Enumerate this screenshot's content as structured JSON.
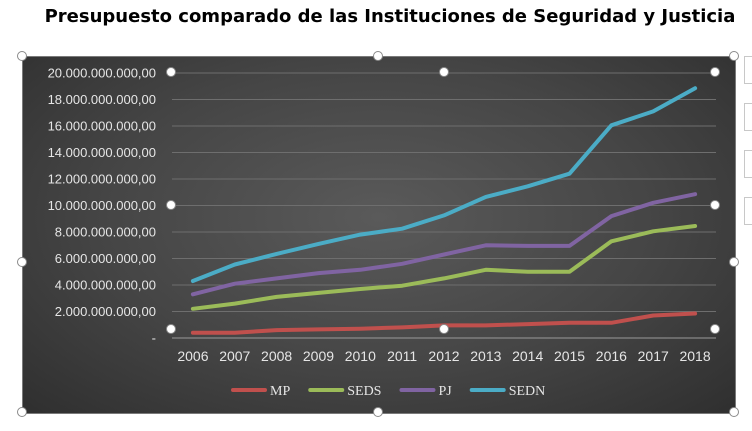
{
  "chart_data": {
    "type": "line",
    "title": "Presupuesto comparado de las Instituciones de Seguridad y Justicia",
    "xlabel": "",
    "ylabel": "",
    "categories": [
      "2006",
      "2007",
      "2008",
      "2009",
      "2010",
      "2011",
      "2012",
      "2013",
      "2014",
      "2015",
      "2016",
      "2017",
      "2018"
    ],
    "ylim": [
      0,
      20000000000
    ],
    "yticks": [
      {
        "value": 0,
        "label": "-"
      },
      {
        "value": 2000000000,
        "label": "2.000.000.000,00"
      },
      {
        "value": 4000000000,
        "label": "4.000.000.000,00"
      },
      {
        "value": 6000000000,
        "label": "6.000.000.000,00"
      },
      {
        "value": 8000000000,
        "label": "8.000.000.000,00"
      },
      {
        "value": 10000000000,
        "label": "10.000.000.000,00"
      },
      {
        "value": 12000000000,
        "label": "12.000.000.000,00"
      },
      {
        "value": 14000000000,
        "label": "14.000.000.000,00"
      },
      {
        "value": 16000000000,
        "label": "16.000.000.000,00"
      },
      {
        "value": 18000000000,
        "label": "18.000.000.000,00"
      },
      {
        "value": 20000000000,
        "label": "20.000.000.000,00"
      }
    ],
    "grid": true,
    "legend": "bottom",
    "series": [
      {
        "name": "MP",
        "color": "#c0504d",
        "values": [
          400000000,
          400000000,
          600000000,
          650000000,
          700000000,
          800000000,
          950000000,
          950000000,
          1050000000,
          1150000000,
          1150000000,
          1700000000,
          1850000000
        ]
      },
      {
        "name": "SEDS",
        "color": "#9bbb59",
        "values": [
          2200000000,
          2600000000,
          3100000000,
          3400000000,
          3700000000,
          3950000000,
          4500000000,
          5150000000,
          5000000000,
          5000000000,
          7300000000,
          8050000000,
          8450000000
        ]
      },
      {
        "name": "PJ",
        "color": "#8064a2",
        "values": [
          3300000000,
          4100000000,
          4500000000,
          4900000000,
          5150000000,
          5600000000,
          6300000000,
          7000000000,
          6950000000,
          6950000000,
          9200000000,
          10200000000,
          10850000000
        ]
      },
      {
        "name": "SEDN",
        "color": "#4bacc6",
        "values": [
          4300000000,
          5550000000,
          6350000000,
          7100000000,
          7800000000,
          8250000000,
          9250000000,
          10650000000,
          11450000000,
          12400000000,
          16050000000,
          17100000000,
          18850000000
        ]
      }
    ]
  }
}
